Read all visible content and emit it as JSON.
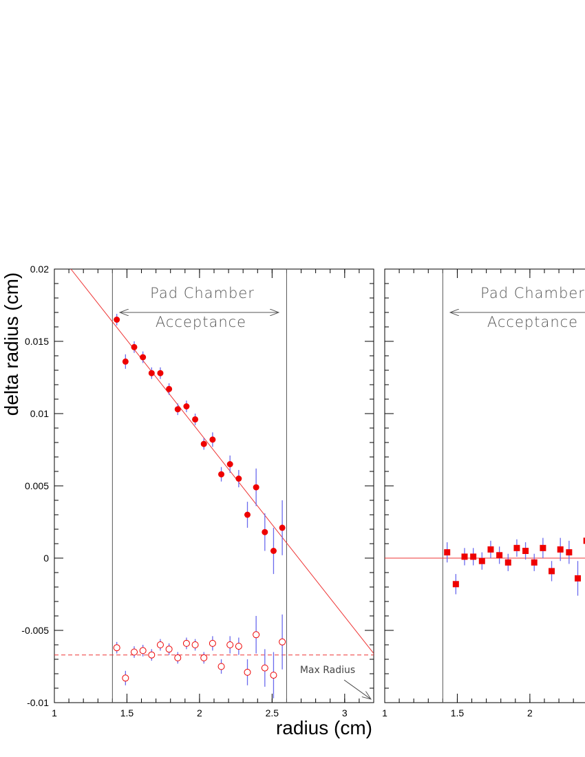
{
  "chart_data": [
    {
      "type": "scatter",
      "x_label": "radius (cm)",
      "y_label": "delta radius (cm)",
      "annotations": [
        "Pad Chamber",
        "Acceptance",
        "Max Radius"
      ],
      "xlim": [
        1,
        3.2
      ],
      "ylim": [
        -0.01,
        0.02
      ],
      "xticks": [
        1,
        1.5,
        2,
        2.5,
        3
      ],
      "yticks": [
        -0.01,
        -0.005,
        0,
        0.005,
        0.01,
        0.015,
        0.02
      ],
      "ytick_labels": true,
      "minor_ticks": 5,
      "vlines": [
        1.4,
        2.6
      ],
      "vline_color": "#555555",
      "error_color": "#6a6aee",
      "lines": [
        {
          "x": [
            1.114,
            3.2
          ],
          "values": [
            0.02,
            -0.0066
          ],
          "color": "#ee3333",
          "style": "solid"
        },
        {
          "x": [
            1,
            3.2
          ],
          "values": [
            -0.0067,
            -0.0067
          ],
          "color": "#ee3333",
          "style": "dashed"
        }
      ],
      "series": [
        {
          "marker": "filled-circle",
          "color": "#ee0000",
          "x": [
            1.43,
            1.49,
            1.55,
            1.61,
            1.67,
            1.73,
            1.79,
            1.85,
            1.91,
            1.97,
            2.03,
            2.09,
            2.15,
            2.21,
            2.27,
            2.33,
            2.39,
            2.45,
            2.51,
            2.57
          ],
          "values": [
            0.0165,
            0.0136,
            0.0146,
            0.0139,
            0.0128,
            0.0128,
            0.0117,
            0.0103,
            0.0105,
            0.0096,
            0.0079,
            0.0082,
            0.0058,
            0.0065,
            0.0055,
            0.003,
            0.0049,
            0.0018,
            0.0005,
            0.0021
          ],
          "errors": [
            0.0004,
            0.0005,
            0.0004,
            0.0004,
            0.0004,
            0.0004,
            0.0004,
            0.0004,
            0.0004,
            0.0004,
            0.0004,
            0.0005,
            0.0005,
            0.0006,
            0.0006,
            0.0009,
            0.0013,
            0.0013,
            0.0016,
            0.0019
          ]
        },
        {
          "marker": "open-circle",
          "color": "#ee0000",
          "x": [
            1.43,
            1.49,
            1.55,
            1.61,
            1.67,
            1.73,
            1.79,
            1.85,
            1.91,
            1.97,
            2.03,
            2.09,
            2.15,
            2.21,
            2.27,
            2.33,
            2.39,
            2.45,
            2.51,
            2.57
          ],
          "values": [
            -0.0062,
            -0.0083,
            -0.0065,
            -0.0064,
            -0.0067,
            -0.006,
            -0.0063,
            -0.0069,
            -0.0059,
            -0.006,
            -0.0069,
            -0.0059,
            -0.0075,
            -0.006,
            -0.0061,
            -0.0079,
            -0.0053,
            -0.0076,
            -0.0081,
            -0.0058
          ],
          "errors": [
            0.0004,
            0.0005,
            0.0004,
            0.0004,
            0.0004,
            0.0004,
            0.0004,
            0.0004,
            0.0004,
            0.0004,
            0.0004,
            0.0005,
            0.0005,
            0.0006,
            0.0006,
            0.0009,
            0.0013,
            0.0013,
            0.0016,
            0.0019
          ]
        }
      ]
    },
    {
      "type": "scatter",
      "annotations": [
        "Pad Chamber",
        "Acceptance"
      ],
      "xlim": [
        1,
        3.2
      ],
      "ylim": [
        -0.01,
        0.02
      ],
      "xticks": [
        1,
        1.5,
        2
      ],
      "yticks": [
        -0.01,
        -0.005,
        0,
        0.005,
        0.01,
        0.015,
        0.02
      ],
      "ytick_labels": false,
      "minor_ticks": 5,
      "vlines": [
        1.4
      ],
      "vline_color": "#555555",
      "error_color": "#6a6aee",
      "lines": [
        {
          "x": [
            1,
            3.2
          ],
          "values": [
            0,
            0
          ],
          "color": "#ee3333",
          "style": "solid"
        }
      ],
      "series": [
        {
          "marker": "filled-square",
          "color": "#ee0000",
          "x": [
            1.43,
            1.49,
            1.55,
            1.61,
            1.67,
            1.73,
            1.79,
            1.85,
            1.91,
            1.97,
            2.03,
            2.09,
            2.15,
            2.21,
            2.27,
            2.33,
            2.39
          ],
          "values": [
            0.0004,
            -0.0018,
            0.0001,
            0.0001,
            -0.0002,
            0.0006,
            0.0002,
            -0.0003,
            0.0007,
            0.0005,
            -0.0003,
            0.0007,
            -0.0009,
            0.0006,
            0.0004,
            -0.0014,
            0.0012
          ],
          "errors": [
            0.0007,
            0.0007,
            0.0006,
            0.0006,
            0.0006,
            0.0006,
            0.0006,
            0.0006,
            0.0006,
            0.0006,
            0.0006,
            0.0007,
            0.0007,
            0.0008,
            0.0008,
            0.0012,
            0.0012
          ]
        }
      ]
    }
  ]
}
